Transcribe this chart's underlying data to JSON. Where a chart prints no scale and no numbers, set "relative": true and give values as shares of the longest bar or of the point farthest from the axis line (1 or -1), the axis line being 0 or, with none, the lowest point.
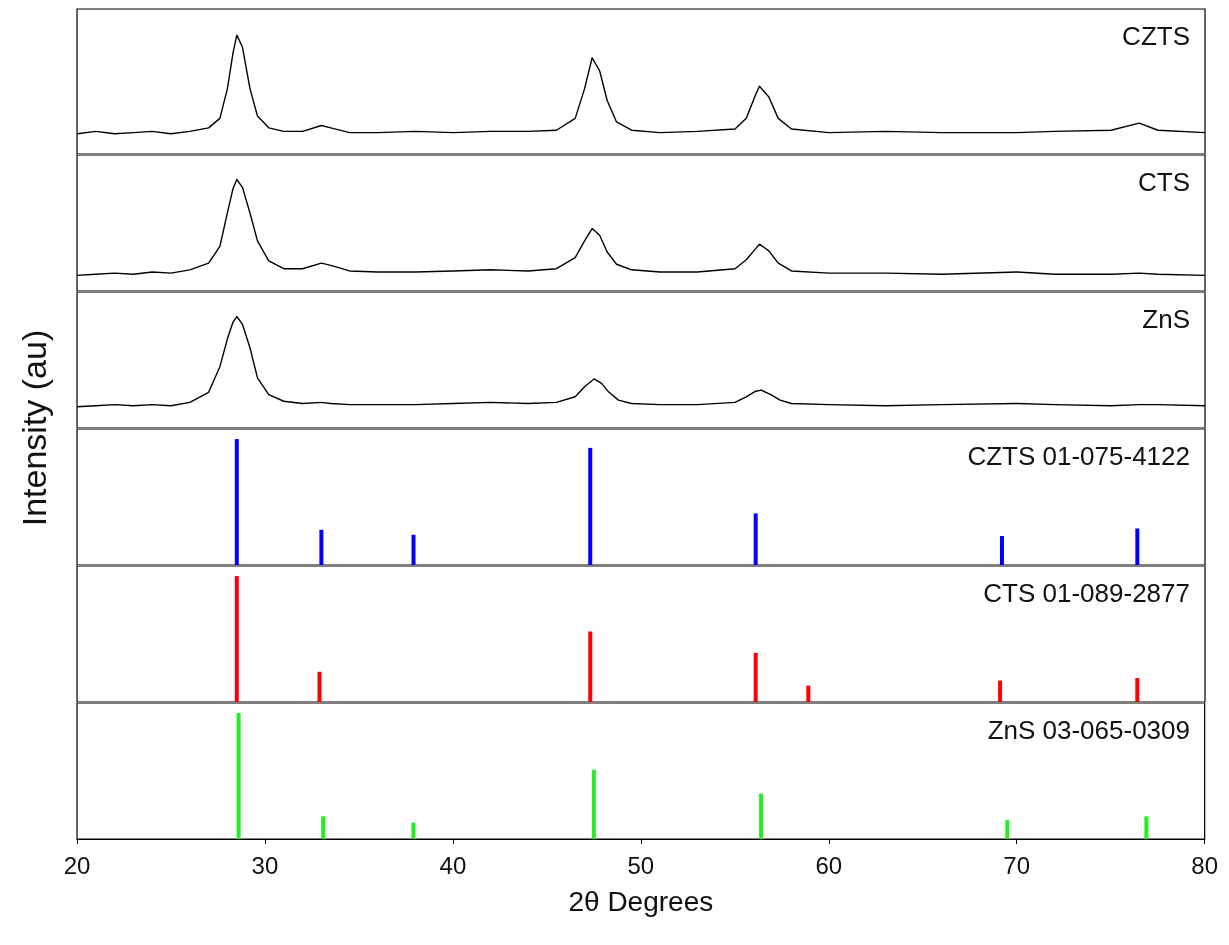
{
  "chart_data": [
    {
      "type": "line",
      "title": "CZTS",
      "relative": true,
      "marker": "none",
      "xlim": [
        20,
        80
      ],
      "xticks": [
        20,
        30,
        40,
        50,
        60,
        70,
        80
      ],
      "tick_labels": false,
      "series": [
        {
          "color": "#000000",
          "x": [
            20,
            21,
            22,
            23,
            24,
            25,
            26,
            27,
            27.6,
            28,
            28.3,
            28.5,
            28.8,
            29.2,
            29.6,
            30.2,
            31,
            32,
            33,
            33.5,
            34.5,
            36,
            38,
            40,
            42,
            44,
            45.5,
            46.5,
            47,
            47.4,
            47.8,
            48.2,
            48.7,
            49.5,
            51,
            53,
            55,
            55.6,
            56.1,
            56.3,
            56.8,
            57.3,
            58,
            60,
            63,
            66,
            70,
            72,
            75,
            76.5,
            77.5,
            80
          ],
          "values": [
            0.17,
            0.19,
            0.17,
            0.18,
            0.19,
            0.17,
            0.19,
            0.22,
            0.3,
            0.55,
            0.85,
            1,
            0.9,
            0.55,
            0.32,
            0.22,
            0.19,
            0.19,
            0.24,
            0.22,
            0.18,
            0.18,
            0.19,
            0.18,
            0.19,
            0.19,
            0.2,
            0.3,
            0.55,
            0.81,
            0.7,
            0.45,
            0.27,
            0.2,
            0.18,
            0.19,
            0.21,
            0.3,
            0.5,
            0.57,
            0.48,
            0.3,
            0.21,
            0.18,
            0.19,
            0.18,
            0.18,
            0.19,
            0.2,
            0.26,
            0.2,
            0.18
          ]
        }
      ]
    },
    {
      "type": "line",
      "title": "CTS",
      "relative": true,
      "marker": "none",
      "xlim": [
        20,
        80
      ],
      "xticks": [
        20,
        30,
        40,
        50,
        60,
        70,
        80
      ],
      "tick_labels": false,
      "series": [
        {
          "color": "#000000",
          "x": [
            20,
            21,
            22,
            23,
            24,
            25,
            26,
            27,
            27.6,
            28,
            28.3,
            28.5,
            28.8,
            29.2,
            29.6,
            30.2,
            31,
            32,
            33,
            33.5,
            34.5,
            36,
            38,
            40,
            42,
            44,
            45.5,
            46.5,
            47,
            47.4,
            47.8,
            48.2,
            48.7,
            49.5,
            51,
            53,
            55,
            55.6,
            56.1,
            56.3,
            56.8,
            57.3,
            58,
            60,
            63,
            66,
            70,
            72,
            75,
            76.5,
            77.5,
            80
          ],
          "values": [
            0.14,
            0.15,
            0.16,
            0.15,
            0.17,
            0.16,
            0.19,
            0.25,
            0.4,
            0.7,
            0.92,
            1,
            0.93,
            0.7,
            0.45,
            0.27,
            0.2,
            0.2,
            0.25,
            0.23,
            0.18,
            0.17,
            0.17,
            0.18,
            0.19,
            0.18,
            0.2,
            0.3,
            0.45,
            0.56,
            0.5,
            0.35,
            0.24,
            0.19,
            0.17,
            0.17,
            0.2,
            0.28,
            0.38,
            0.42,
            0.36,
            0.25,
            0.18,
            0.16,
            0.16,
            0.15,
            0.17,
            0.15,
            0.15,
            0.16,
            0.15,
            0.14
          ]
        }
      ]
    },
    {
      "type": "line",
      "title": "ZnS",
      "relative": true,
      "marker": "none",
      "xlim": [
        20,
        80
      ],
      "xticks": [
        20,
        30,
        40,
        50,
        60,
        70,
        80
      ],
      "tick_labels": false,
      "series": [
        {
          "color": "#000000",
          "x": [
            20,
            21,
            22,
            23,
            24,
            25,
            26,
            27,
            27.6,
            28,
            28.3,
            28.5,
            28.8,
            29.2,
            29.6,
            30.2,
            31,
            32,
            33,
            33.5,
            34.5,
            36,
            38,
            40,
            42,
            44,
            45.5,
            46.5,
            47,
            47.5,
            47.9,
            48.3,
            48.8,
            49.5,
            51,
            53,
            55,
            55.6,
            56.1,
            56.4,
            56.9,
            57.4,
            58,
            60,
            63,
            66,
            70,
            72,
            75,
            76.5,
            77.5,
            80
          ],
          "values": [
            0.19,
            0.2,
            0.21,
            0.2,
            0.21,
            0.2,
            0.23,
            0.32,
            0.55,
            0.8,
            0.95,
            1,
            0.93,
            0.72,
            0.45,
            0.3,
            0.24,
            0.22,
            0.23,
            0.22,
            0.21,
            0.21,
            0.21,
            0.22,
            0.23,
            0.22,
            0.23,
            0.28,
            0.37,
            0.44,
            0.4,
            0.32,
            0.25,
            0.22,
            0.21,
            0.21,
            0.23,
            0.28,
            0.33,
            0.34,
            0.3,
            0.25,
            0.22,
            0.21,
            0.2,
            0.21,
            0.22,
            0.21,
            0.2,
            0.21,
            0.21,
            0.2
          ]
        }
      ]
    },
    {
      "type": "bar",
      "title": "CZTS 01-075-4122",
      "relative": true,
      "xlim": [
        20,
        80
      ],
      "xticks": [
        20,
        30,
        40,
        50,
        60,
        70,
        80
      ],
      "tick_labels": false,
      "series": [
        {
          "color": "#0000ff",
          "x": [
            28.5,
            33.0,
            37.9,
            47.3,
            56.1,
            69.2,
            76.4
          ],
          "values": [
            1,
            0.28,
            0.24,
            0.93,
            0.41,
            0.23,
            0.29
          ]
        }
      ]
    },
    {
      "type": "bar",
      "title": "CTS 01-089-2877",
      "relative": true,
      "xlim": [
        20,
        80
      ],
      "xticks": [
        20,
        30,
        40,
        50,
        60,
        70,
        80
      ],
      "tick_labels": false,
      "ylabel": "Intensity (au)",
      "series": [
        {
          "color": "#ff0000",
          "x": [
            28.5,
            32.9,
            47.3,
            56.1,
            58.9,
            69.1,
            76.4
          ],
          "values": [
            1,
            0.24,
            0.56,
            0.39,
            0.13,
            0.17,
            0.19
          ]
        }
      ]
    },
    {
      "type": "bar",
      "title": "ZnS 03-065-0309",
      "relative": true,
      "xlim": [
        20,
        80
      ],
      "xticks": [
        20,
        30,
        40,
        50,
        60,
        70,
        80
      ],
      "tick_labels": "x",
      "xlabel": "2θ Degrees",
      "series": [
        {
          "color": "#22ee22",
          "x": [
            28.6,
            33.1,
            37.9,
            47.5,
            56.4,
            69.5,
            76.9
          ],
          "values": [
            1,
            0.18,
            0.13,
            0.55,
            0.36,
            0.15,
            0.18
          ]
        }
      ]
    }
  ]
}
